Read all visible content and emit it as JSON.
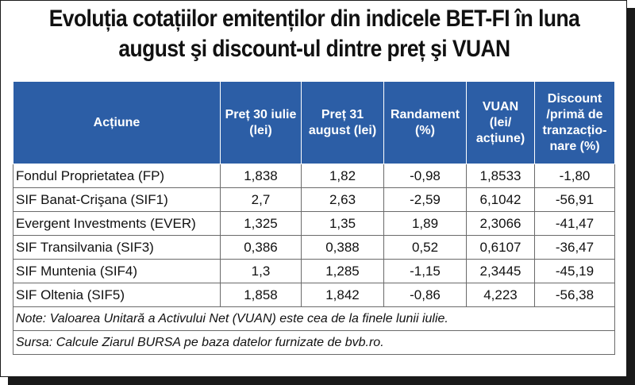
{
  "title": {
    "line1": "Evoluția cotațiilor emitenților din indicele BET-FI în luna",
    "line2": "august şi discount-ul dintre preț şi VUAN"
  },
  "headers": [
    {
      "line1": "Acțiune",
      "line2": "",
      "line3": "",
      "line4": ""
    },
    {
      "line1": "Preț 30 iulie",
      "line2": "(lei)",
      "line3": "",
      "line4": ""
    },
    {
      "line1": "Preț 31",
      "line2": "august  (lei)",
      "line3": "",
      "line4": ""
    },
    {
      "line1": "Randament",
      "line2": "(%)",
      "line3": "",
      "line4": ""
    },
    {
      "line1": "VUAN (lei/",
      "line2": "acțiune)",
      "line3": "",
      "line4": ""
    },
    {
      "line1": "Discount",
      "line2": "/primă de",
      "line3": "tranzacțio-",
      "line4": "nare (%)"
    }
  ],
  "rows": [
    {
      "name": "Fondul Proprietatea (FP)",
      "p30": "1,838",
      "p31": "1,82",
      "rand": "-0,98",
      "vuan": "1,8533",
      "disc": "-1,80"
    },
    {
      "name": "SIF Banat-Crişana (SIF1)",
      "p30": "2,7",
      "p31": "2,63",
      "rand": "-2,59",
      "vuan": "6,1042",
      "disc": "-56,91"
    },
    {
      "name": "Evergent Investments (EVER)",
      "p30": "1,325",
      "p31": "1,35",
      "rand": "1,89",
      "vuan": "2,3066",
      "disc": "-41,47"
    },
    {
      "name": "SIF Transilvania (SIF3)",
      "p30": "0,386",
      "p31": "0,388",
      "rand": "0,52",
      "vuan": "0,6107",
      "disc": "-36,47"
    },
    {
      "name": "SIF Muntenia (SIF4)",
      "p30": "1,3",
      "p31": "1,285",
      "rand": "-1,15",
      "vuan": "2,3445",
      "disc": "-45,19"
    },
    {
      "name": "SIF Oltenia (SIF5)",
      "p30": "1,858",
      "p31": "1,842",
      "rand": "-0,86",
      "vuan": "4,223",
      "disc": "-56,38"
    }
  ],
  "note": "Note: Valoarea Unitară a Activului Net (VUAN) este cea de la finele lunii iulie.",
  "source": "Sursa: Calcule Ziarul BURSA pe baza datelor furnizate de bvb.ro.",
  "colors": {
    "header_bg": "#2c5ea6",
    "header_text": "#ffffff",
    "border": "#1a1a1a"
  }
}
